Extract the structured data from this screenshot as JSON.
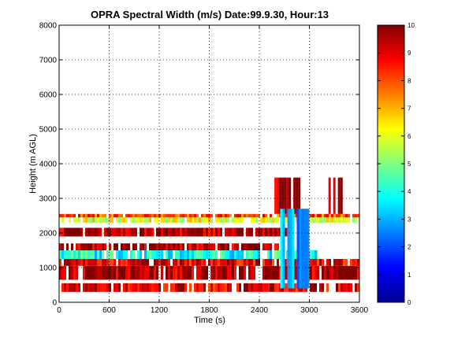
{
  "chart_data": {
    "type": "heatmap",
    "title": "OPRA Spectral Width (m/s)  Date:99.9.30, Hour:13",
    "xlabel": "Time (s)",
    "ylabel": "Height (m AGL)",
    "xlim": [
      0,
      3600
    ],
    "ylim": [
      0,
      8000
    ],
    "x_ticks": [
      "0",
      "600",
      "1200",
      "1800",
      "2400",
      "3000",
      "3600"
    ],
    "y_ticks": [
      "0",
      "1000",
      "2000",
      "3000",
      "4000",
      "5000",
      "6000",
      "7000",
      "8000"
    ],
    "grid": true,
    "colorbar": {
      "range": [
        0,
        10
      ],
      "ticks": [
        "0",
        "1",
        "2",
        "3",
        "4",
        "5",
        "6",
        "7",
        "8",
        "9",
        "10"
      ],
      "colormap": "jet"
    },
    "series": [
      {
        "height_range": [
          300,
          550
        ],
        "time_range": [
          0,
          3600
        ],
        "value": 9
      },
      {
        "height_range": [
          650,
          1050
        ],
        "time_range": [
          0,
          3600
        ],
        "value": 9.5
      },
      {
        "height_range": [
          1050,
          1250
        ],
        "time_range": [
          0,
          3600
        ],
        "value": 9
      },
      {
        "height_range": [
          1250,
          1500
        ],
        "time_range": [
          0,
          3100
        ],
        "value": 4
      },
      {
        "height_range": [
          1500,
          1700
        ],
        "time_range": [
          0,
          2700
        ],
        "value": 9.5
      },
      {
        "height_range": [
          1900,
          2150
        ],
        "time_range": [
          0,
          2800
        ],
        "value": 9.5
      },
      {
        "height_range": [
          2300,
          2450
        ],
        "time_range": [
          0,
          3600
        ],
        "value": 6
      },
      {
        "height_range": [
          2450,
          2550
        ],
        "time_range": [
          0,
          3600
        ],
        "value": 8
      },
      {
        "height_range": [
          2550,
          3600
        ],
        "time_range": [
          2580,
          2900
        ],
        "value": 9.5
      },
      {
        "height_range": [
          2550,
          3600
        ],
        "time_range": [
          3200,
          3400
        ],
        "value": 9.5
      },
      {
        "height_range": [
          400,
          2700
        ],
        "time_range": [
          2650,
          3000
        ],
        "value": 3
      }
    ]
  }
}
